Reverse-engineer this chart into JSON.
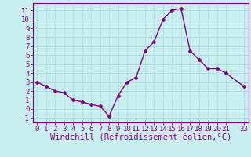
{
  "x": [
    0,
    1,
    2,
    3,
    4,
    5,
    6,
    7,
    8,
    9,
    10,
    11,
    12,
    13,
    14,
    15,
    16,
    17,
    18,
    19,
    20,
    21,
    23
  ],
  "y": [
    3.0,
    2.5,
    2.0,
    1.8,
    1.0,
    0.8,
    0.5,
    0.3,
    -0.8,
    1.5,
    3.0,
    3.5,
    6.5,
    7.5,
    10.0,
    11.0,
    11.2,
    6.5,
    5.5,
    4.5,
    4.5,
    4.0,
    2.5
  ],
  "line_color": "#800080",
  "marker": "D",
  "marker_size": 2,
  "bg_color": "#c8eef0",
  "grid_color": "#aadddd",
  "xlabel": "Windchill (Refroidissement éolien,°C)",
  "xlabel_color": "#800080",
  "xticks": [
    0,
    1,
    2,
    3,
    4,
    5,
    6,
    7,
    8,
    9,
    10,
    11,
    12,
    13,
    14,
    15,
    16,
    17,
    18,
    19,
    20,
    21,
    23
  ],
  "yticks": [
    -1,
    0,
    1,
    2,
    3,
    4,
    5,
    6,
    7,
    8,
    9,
    10,
    11
  ],
  "ylim": [
    -1.5,
    11.8
  ],
  "xlim": [
    -0.5,
    23.5
  ],
  "tick_color": "#800080",
  "tick_fontsize": 6.5,
  "xlabel_fontsize": 7.5,
  "spine_color": "#800080",
  "line_width": 1.0
}
